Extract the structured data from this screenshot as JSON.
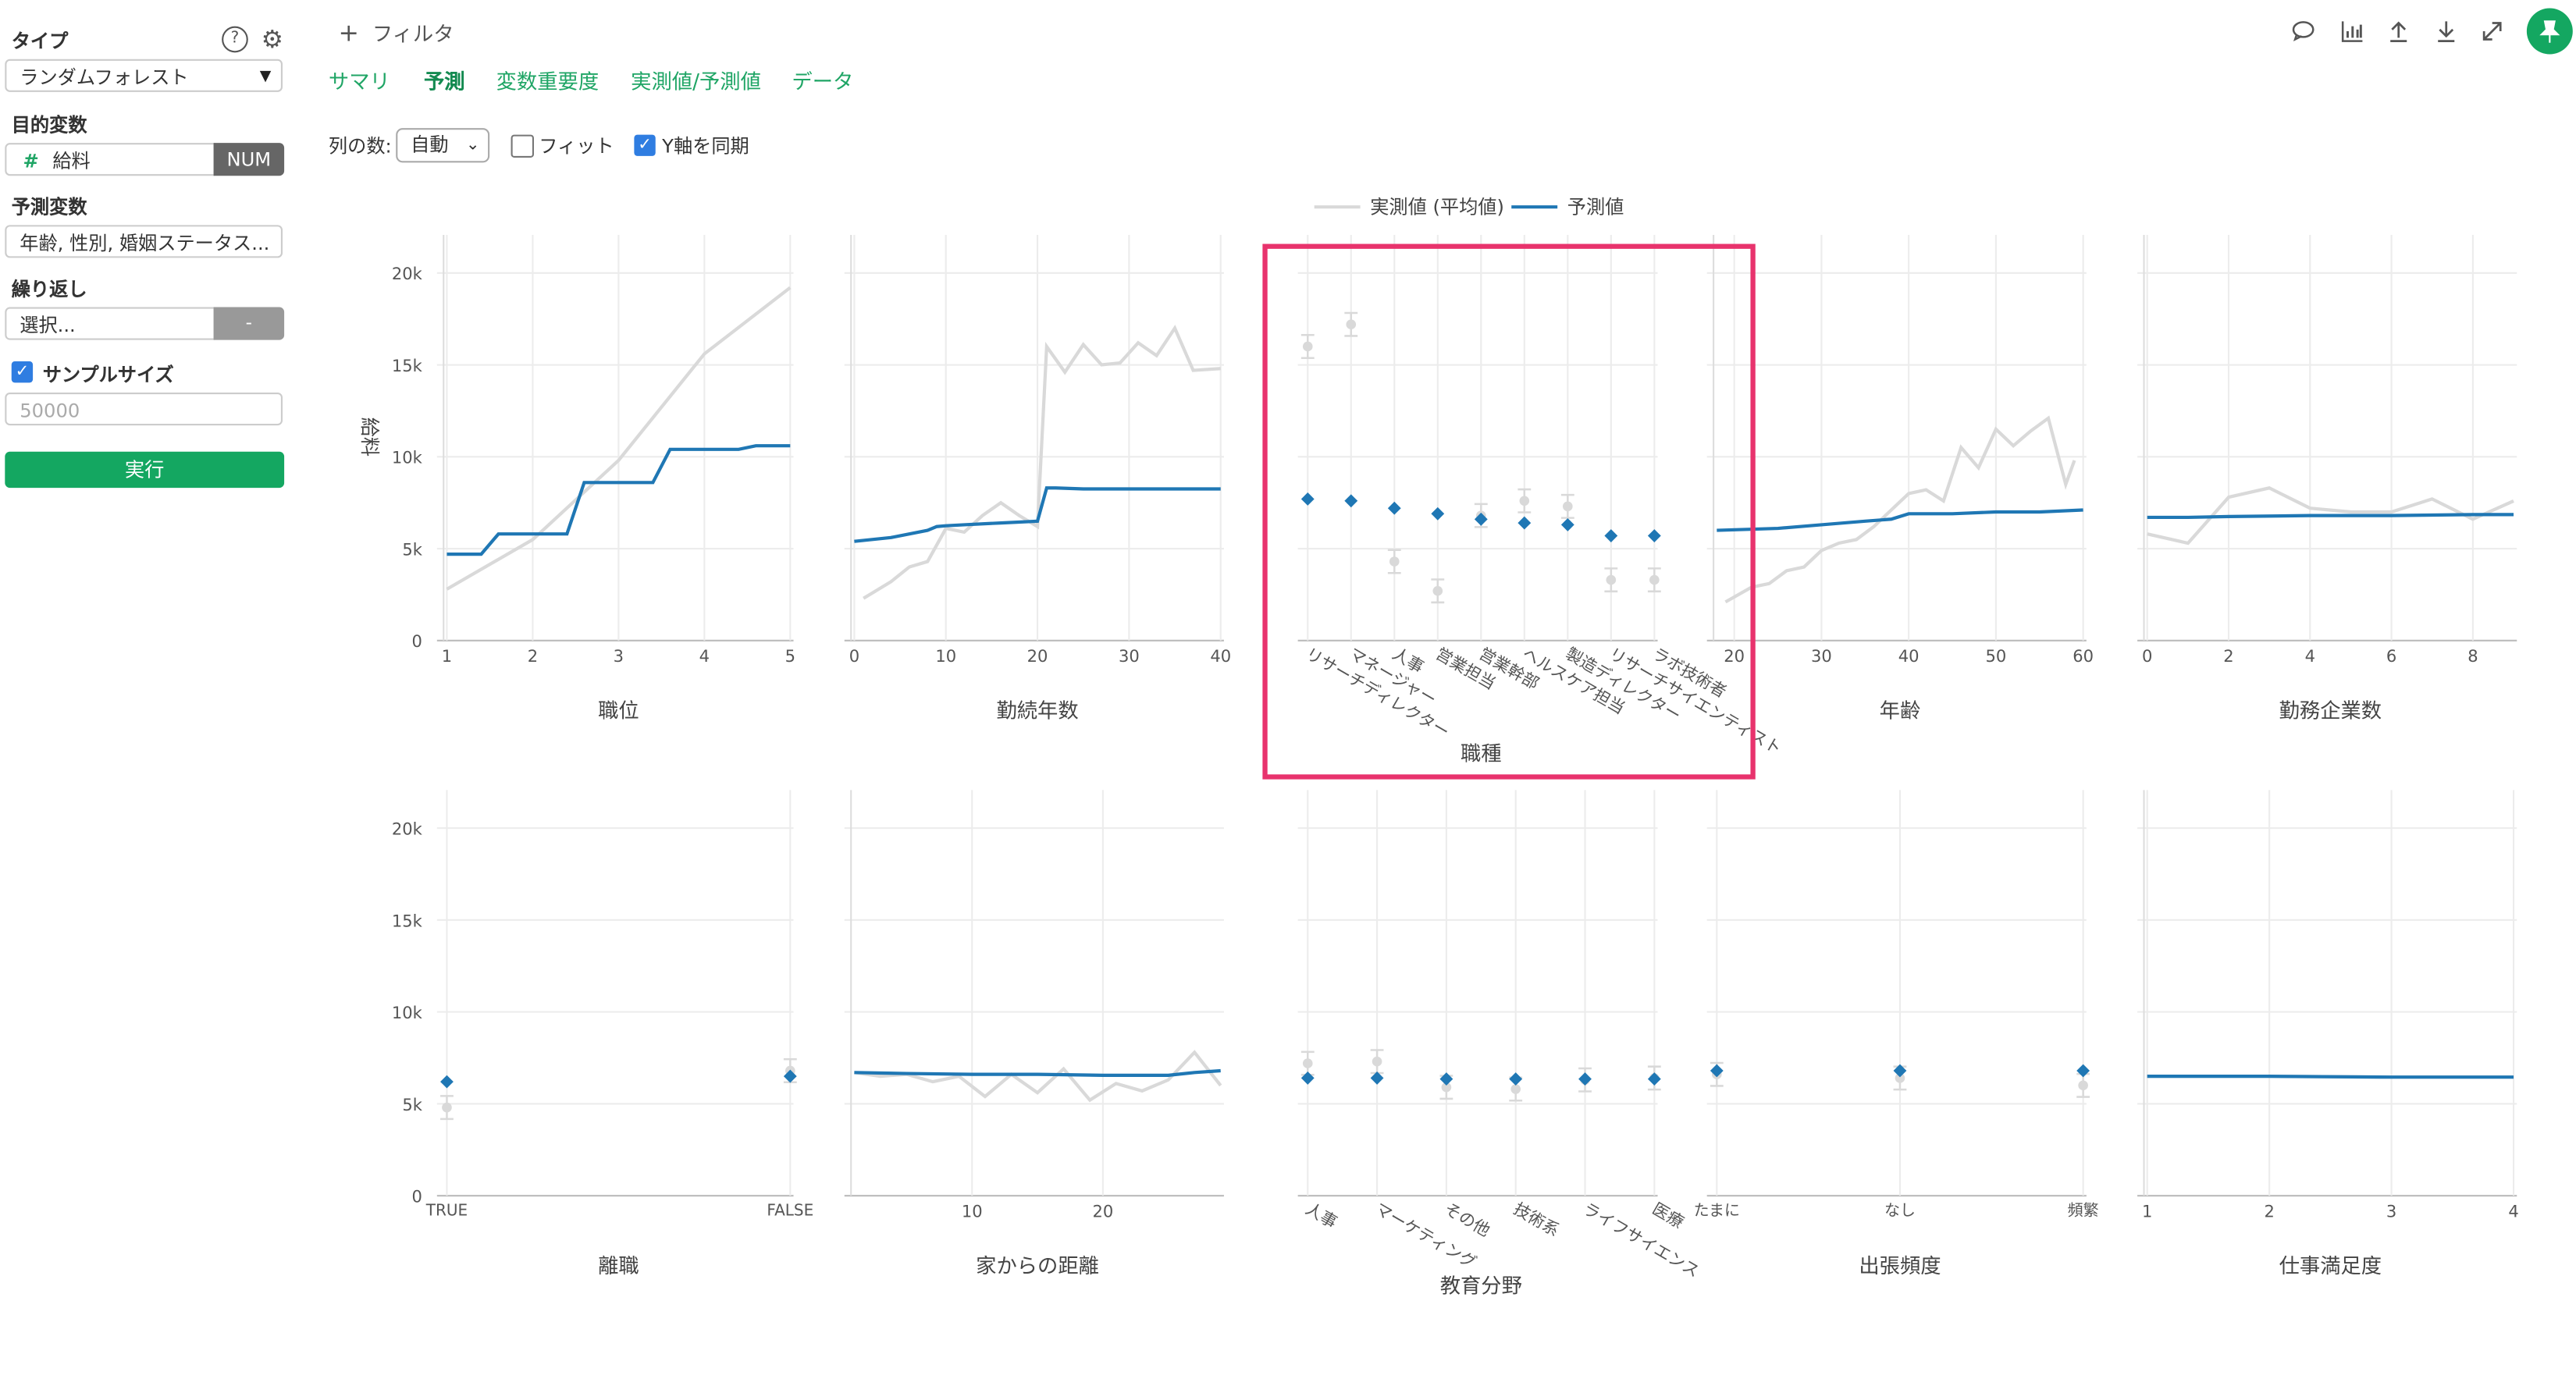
{
  "sidebar": {
    "type_label": "タイプ",
    "type_value": "ランダムフォレスト",
    "target_label": "目的変数",
    "target_value": "給料",
    "target_badge": "NUM",
    "predictor_label": "予測変数",
    "predictor_value": "年齢, 性別, 婚姻ステータス...",
    "repeat_label": "繰り返し",
    "repeat_value": "選択...",
    "repeat_btn": "-",
    "sample_label": "サンプルサイズ",
    "sample_placeholder": "50000",
    "run_label": "実行"
  },
  "header": {
    "filter_label": "フィルタ"
  },
  "tabs": [
    {
      "label": "サマリ"
    },
    {
      "label": "予測"
    },
    {
      "label": "変数重要度"
    },
    {
      "label": "実測値/予測値"
    },
    {
      "label": "データ"
    }
  ],
  "options": {
    "cols_label": "列の数:",
    "cols_value": "自動",
    "fit_label": "フィット",
    "sync_label": "Y軸を同期"
  },
  "colors": {
    "accent": "#1fa565",
    "predicted": "#1f77b4",
    "actual": "#d9d9d9",
    "highlight": "#e8336d"
  },
  "chart_data": {
    "type": "line",
    "ylabel": "給料",
    "ylim": [
      0,
      21000
    ],
    "yticks": [
      0,
      5000,
      10000,
      15000,
      20000
    ],
    "ytick_labels": [
      "0",
      "5k",
      "10k",
      "15k",
      "20k"
    ],
    "legend": [
      {
        "name": "実測値 (平均値)"
      },
      {
        "name": "予測値"
      }
    ],
    "panels": [
      {
        "name": "職位",
        "kind": "numeric",
        "xlim": [
          1,
          5
        ],
        "xticks": [
          1,
          2,
          3,
          4,
          5
        ],
        "actual_x": [
          1,
          2,
          3,
          4,
          5
        ],
        "actual_y": [
          2800,
          5500,
          9800,
          15600,
          19200
        ],
        "predicted_x": [
          1,
          1.4,
          1.6,
          2.4,
          2.6,
          3.4,
          3.6,
          4.4,
          4.6,
          5
        ],
        "predicted_y": [
          4700,
          4700,
          5800,
          5800,
          8600,
          8600,
          10400,
          10400,
          10600,
          10600
        ]
      },
      {
        "name": "勤続年数",
        "kind": "numeric",
        "xlim": [
          0,
          40
        ],
        "xticks": [
          0,
          10,
          20,
          30,
          40
        ],
        "actual_x": [
          1,
          4,
          6,
          8,
          10,
          12,
          14,
          16,
          18,
          20,
          21,
          23,
          25,
          27,
          29,
          31,
          33,
          35,
          37,
          40
        ],
        "actual_y": [
          2300,
          3200,
          4000,
          4300,
          6100,
          5900,
          6800,
          7500,
          6800,
          6200,
          16000,
          14600,
          16100,
          15000,
          15100,
          16200,
          15500,
          17000,
          14700,
          14800
        ],
        "predicted_x": [
          0,
          4,
          8,
          9,
          10,
          12,
          16,
          20,
          21,
          22,
          25,
          30,
          35,
          40
        ],
        "predicted_y": [
          5400,
          5600,
          6000,
          6200,
          6250,
          6300,
          6400,
          6500,
          8300,
          8300,
          8250,
          8250,
          8250,
          8250
        ]
      },
      {
        "name": "職種",
        "kind": "categorical",
        "categories": [
          "リサーチディレクター",
          "マネージャー",
          "人事",
          "営業担当",
          "営業幹部",
          "ヘルスケア担当",
          "製造ディレクター",
          "リサーチサイエンティスト",
          "ラボ技術者"
        ],
        "actual_y": [
          16000,
          17200,
          4300,
          2700,
          6800,
          7600,
          7300,
          3300,
          3300
        ],
        "predicted_y": [
          7700,
          7600,
          7200,
          6900,
          6600,
          6400,
          6300,
          5700,
          5700
        ]
      },
      {
        "name": "年齢",
        "kind": "numeric",
        "xlim": [
          18,
          60
        ],
        "xticks": [
          20,
          30,
          40,
          50,
          60
        ],
        "actual_x": [
          19,
          22,
          24,
          26,
          28,
          30,
          32,
          34,
          36,
          38,
          40,
          42,
          44,
          46,
          48,
          50,
          52,
          54,
          56,
          58,
          59
        ],
        "actual_y": [
          2100,
          2900,
          3100,
          3800,
          4000,
          4900,
          5300,
          5500,
          6200,
          7100,
          8000,
          8200,
          7600,
          10500,
          9400,
          11500,
          10600,
          11400,
          12100,
          8500,
          9800
        ],
        "predicted_x": [
          18,
          25,
          30,
          35,
          38,
          40,
          45,
          50,
          55,
          60
        ],
        "predicted_y": [
          6000,
          6100,
          6300,
          6500,
          6600,
          6900,
          6900,
          7000,
          7000,
          7100
        ]
      },
      {
        "name": "勤務企業数",
        "kind": "numeric",
        "xlim": [
          0,
          9
        ],
        "xticks": [
          0,
          2,
          4,
          6,
          8
        ],
        "actual_x": [
          0,
          1,
          2,
          3,
          4,
          5,
          6,
          7,
          8,
          9
        ],
        "actual_y": [
          5800,
          5300,
          7800,
          8300,
          7200,
          7000,
          7000,
          7700,
          6600,
          7600
        ],
        "predicted_x": [
          0,
          1,
          2,
          4,
          6,
          8,
          9
        ],
        "predicted_y": [
          6700,
          6700,
          6750,
          6800,
          6800,
          6850,
          6850
        ]
      },
      {
        "name": "離職",
        "kind": "categorical",
        "categories": [
          "TRUE",
          "FALSE"
        ],
        "actual_y": [
          4800,
          6800
        ],
        "predicted_y": [
          6200,
          6500
        ]
      },
      {
        "name": "家からの距離",
        "kind": "numeric",
        "xlim": [
          1,
          29
        ],
        "xticks": [
          10,
          20
        ],
        "actual_x": [
          1,
          3,
          5,
          7,
          9,
          11,
          13,
          15,
          17,
          19,
          21,
          23,
          25,
          27,
          29
        ],
        "actual_y": [
          6700,
          6500,
          6600,
          6200,
          6500,
          5400,
          6600,
          5600,
          6900,
          5200,
          6100,
          5700,
          6300,
          7800,
          6000
        ],
        "predicted_x": [
          1,
          5,
          10,
          15,
          20,
          25,
          27,
          29
        ],
        "predicted_y": [
          6700,
          6650,
          6600,
          6600,
          6550,
          6550,
          6700,
          6800
        ]
      },
      {
        "name": "教育分野",
        "kind": "categorical",
        "categories": [
          "人事",
          "マーケティング",
          "その他",
          "技術系",
          "ライフサイエンス",
          "医療"
        ],
        "actual_y": [
          7200,
          7300,
          5900,
          5800,
          6300,
          6400
        ],
        "predicted_y": [
          6400,
          6400,
          6350,
          6350,
          6350,
          6350
        ]
      },
      {
        "name": "出張頻度",
        "kind": "categorical",
        "categories": [
          "たまに",
          "なし",
          "頻繁"
        ],
        "actual_y": [
          6600,
          6400,
          6000
        ],
        "predicted_y": [
          6800,
          6800,
          6800
        ]
      },
      {
        "name": "仕事満足度",
        "kind": "numeric",
        "xlim": [
          1,
          4
        ],
        "xticks": [
          1,
          2,
          3,
          4
        ],
        "actual_x": [
          1,
          2,
          3,
          4
        ],
        "actual_y": [
          6500,
          6500,
          6450,
          6450
        ],
        "predicted_x": [
          1,
          2,
          3,
          4
        ],
        "predicted_y": [
          6500,
          6500,
          6450,
          6450
        ]
      }
    ]
  }
}
